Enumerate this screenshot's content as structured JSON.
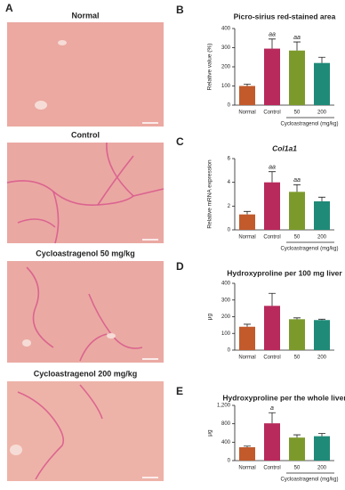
{
  "panel_label": "A",
  "images": [
    {
      "title": "Normal"
    },
    {
      "title": "Control"
    },
    {
      "title": "Cycloastragenol 50 mg/kg"
    },
    {
      "title": "Cycloastragenol 200 mg/kg"
    }
  ],
  "chart_data": [
    {
      "type": "bar",
      "panel_label": "B",
      "title": "Picro-sirius red-stained area",
      "y_label": "Relative value (%)",
      "categories": [
        "Normal",
        "Control",
        "50",
        "200"
      ],
      "values": [
        100,
        295,
        285,
        220
      ],
      "errors": [
        10,
        50,
        45,
        30
      ],
      "annotations": [
        null,
        "aa",
        "aa",
        null
      ],
      "colors": [
        "#c25a2c",
        "#b82a5c",
        "#7c9a2c",
        "#1f8a78"
      ],
      "group_label": "Cycloastragenol (mg/kg)",
      "ylim": [
        0,
        400
      ],
      "yticks": [
        0,
        100,
        200,
        300,
        400
      ]
    },
    {
      "type": "bar",
      "panel_label": "C",
      "title": "Col1a1",
      "y_label": "Relative mRNA expression",
      "categories": [
        "Normal",
        "Control",
        "50",
        "200"
      ],
      "values": [
        1.3,
        4.0,
        3.2,
        2.4
      ],
      "errors": [
        0.25,
        0.9,
        0.6,
        0.35
      ],
      "annotations": [
        null,
        "aa",
        "aa",
        null
      ],
      "colors": [
        "#c25a2c",
        "#b82a5c",
        "#7c9a2c",
        "#1f8a78"
      ],
      "group_label": "Cycloastragenol (mg/kg)",
      "ylim": [
        0,
        6
      ],
      "yticks": [
        0,
        2,
        4,
        6
      ]
    },
    {
      "type": "bar",
      "panel_label": "D",
      "title": "Hydroxyproline per 100 mg liver",
      "y_label": "μg",
      "categories": [
        "Normal",
        "Control",
        "50",
        "200"
      ],
      "values": [
        140,
        265,
        185,
        180
      ],
      "errors": [
        15,
        75,
        8,
        5
      ],
      "colors": [
        "#c25a2c",
        "#b82a5c",
        "#7c9a2c",
        "#1f8a78"
      ],
      "ylim": [
        0,
        400
      ],
      "yticks": [
        0,
        100,
        200,
        300,
        400
      ]
    },
    {
      "type": "bar",
      "panel_label": "E",
      "title": "Hydroxyproline per the whole liver",
      "y_label": "μg",
      "categories": [
        "Normal",
        "Control",
        "50",
        "200"
      ],
      "values": [
        290,
        810,
        500,
        530
      ],
      "errors": [
        25,
        230,
        60,
        60
      ],
      "annotations": [
        null,
        "a",
        null,
        null
      ],
      "colors": [
        "#c25a2c",
        "#b82a5c",
        "#7c9a2c",
        "#1f8a78"
      ],
      "group_label": "Cycloastragenol (mg/kg)",
      "ylim": [
        0,
        1200
      ],
      "yticks": [
        0,
        400,
        800,
        {
          "value": 1200,
          "label": "1,200"
        }
      ]
    }
  ]
}
